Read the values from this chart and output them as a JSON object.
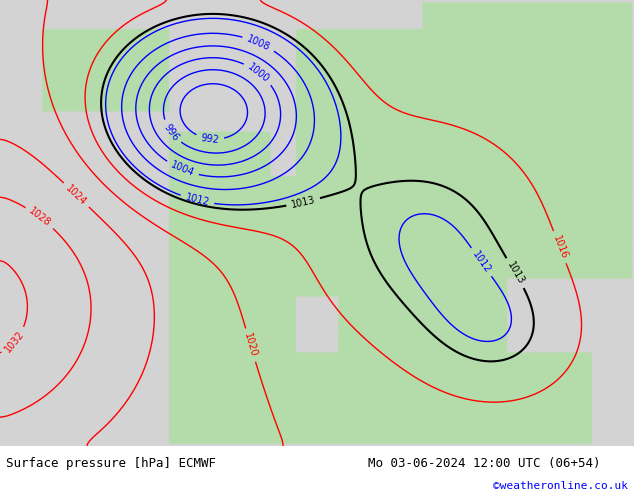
{
  "title_left": "Surface pressure [hPa] ECMWF",
  "title_right": "Mo 03-06-2024 12:00 UTC (06+54)",
  "credit": "©weatheronline.co.uk",
  "bg_color": "#d3d3d3",
  "land_color": "#c8e6c0",
  "sea_color": "#d3d3d3",
  "bottom_bar_color": "#ffffff",
  "title_fontsize": 10,
  "credit_color": "#0000ff"
}
